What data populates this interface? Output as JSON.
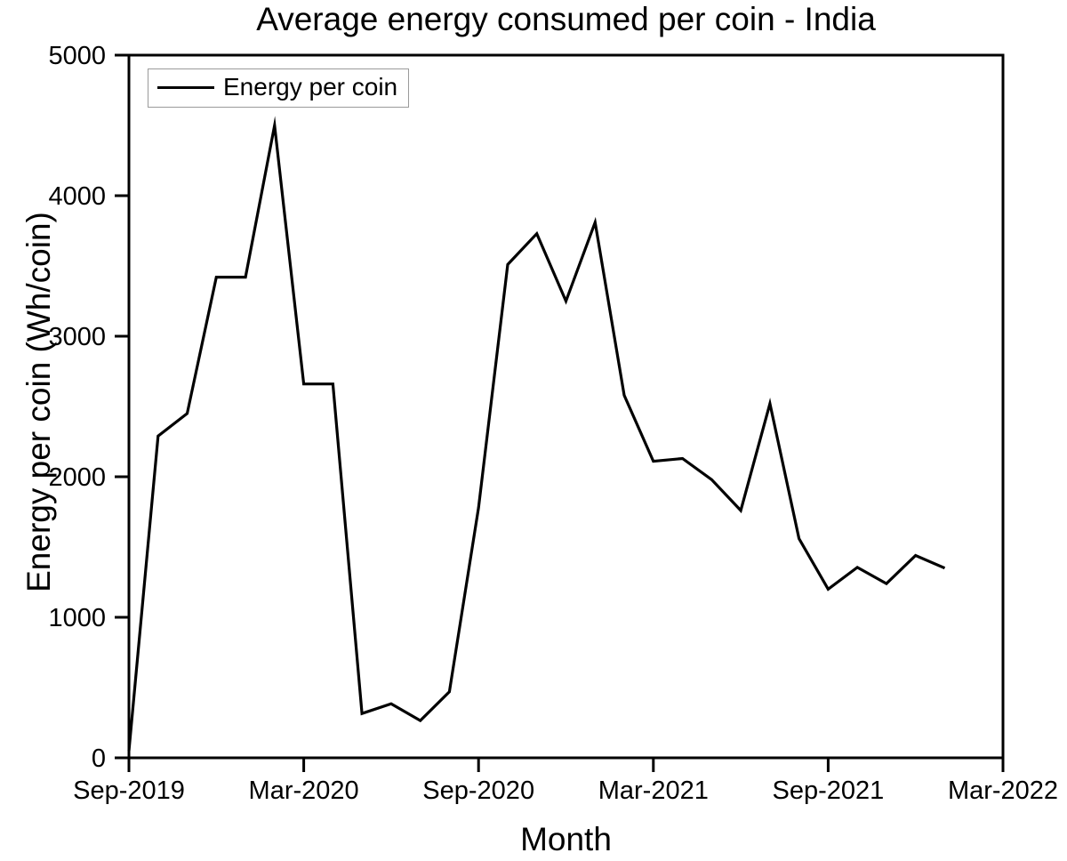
{
  "page": {
    "background": "#ffffff",
    "text_color": "#000000"
  },
  "chart_data": {
    "type": "line",
    "title": "Average energy consumed per coin - India",
    "xlabel": "Month",
    "ylabel": "Energy per coin (Wh/coin)",
    "ylim": [
      0,
      5000
    ],
    "y_ticks": [
      0,
      1000,
      2000,
      3000,
      4000,
      5000
    ],
    "x_tick_labels": [
      "Sep-2019",
      "Mar-2020",
      "Sep-2020",
      "Mar-2021",
      "Sep-2021",
      "Mar-2022"
    ],
    "x_tick_interval_months": 6,
    "grid": false,
    "line_color": "#000000",
    "legend": {
      "label": "Energy per coin",
      "position": "top-left"
    },
    "x": [
      "Sep-2019",
      "Oct-2019",
      "Nov-2019",
      "Dec-2019",
      "Jan-2020",
      "Feb-2020",
      "Mar-2020",
      "Apr-2020",
      "May-2020",
      "Jun-2020",
      "Jul-2020",
      "Aug-2020",
      "Sep-2020",
      "Oct-2020",
      "Nov-2020",
      "Dec-2020",
      "Jan-2021",
      "Feb-2021",
      "Mar-2021",
      "Apr-2021",
      "May-2021",
      "Jun-2021",
      "Jul-2021",
      "Aug-2021",
      "Sep-2021",
      "Oct-2021",
      "Nov-2021",
      "Dec-2021",
      "Jan-2022"
    ],
    "series": [
      {
        "name": "Energy per coin",
        "color": "#000000",
        "values": [
          50,
          2290,
          2450,
          3420,
          3420,
          4500,
          2660,
          2660,
          315,
          385,
          265,
          470,
          1780,
          3510,
          3730,
          3250,
          3810,
          2580,
          2110,
          2130,
          1980,
          1760,
          2520,
          1560,
          1200,
          1355,
          1240,
          1440,
          1350
        ]
      }
    ]
  }
}
